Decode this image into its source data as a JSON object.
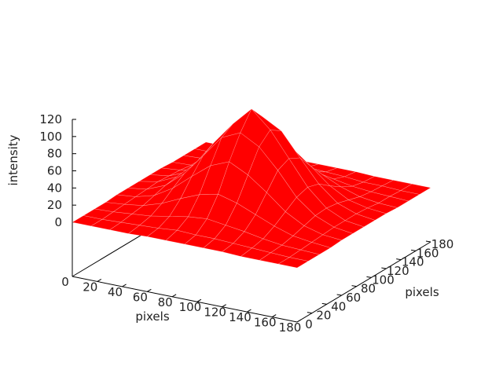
{
  "chart_data": {
    "type": "surface",
    "xlabel": "pixels",
    "ylabel": "pixels",
    "zlabel": "intensity",
    "xlim": [
      0,
      180
    ],
    "ylim": [
      0,
      180
    ],
    "zlim": [
      0,
      120
    ],
    "xticks": [
      "0",
      "20",
      "40",
      "60",
      "80",
      "100",
      "120",
      "140",
      "160",
      "180"
    ],
    "yticks": [
      "0",
      "20",
      "40",
      "60",
      "80",
      "100",
      "120",
      "140",
      "160",
      "180"
    ],
    "zticks": [
      "0",
      "20",
      "40",
      "60",
      "80",
      "100",
      "120"
    ],
    "grid": false,
    "surface_color": "#ff0000",
    "x": [
      0,
      15,
      30,
      45,
      60,
      75,
      90,
      105,
      120,
      135,
      150,
      165,
      180
    ],
    "y": [
      0,
      15,
      30,
      45,
      60,
      75,
      90,
      105,
      120,
      135,
      150,
      165,
      180
    ],
    "z": [
      [
        0,
        0,
        0,
        0,
        1,
        1,
        1,
        1,
        1,
        0,
        0,
        0,
        0
      ],
      [
        0,
        0,
        1,
        2,
        3,
        5,
        4,
        4,
        3,
        2,
        1,
        0,
        0
      ],
      [
        0,
        1,
        3,
        5,
        9,
        13,
        15,
        12,
        9,
        5,
        2,
        1,
        0
      ],
      [
        0,
        2,
        5,
        12,
        22,
        31,
        36,
        30,
        21,
        12,
        5,
        2,
        0
      ],
      [
        1,
        3,
        9,
        22,
        40,
        57,
        66,
        55,
        39,
        21,
        9,
        3,
        1
      ],
      [
        1,
        4,
        13,
        31,
        56,
        82,
        92,
        80,
        57,
        30,
        13,
        4,
        1
      ],
      [
        1,
        5,
        15,
        35,
        64,
        90,
        112,
        92,
        63,
        34,
        14,
        4,
        1
      ],
      [
        1,
        4,
        13,
        30,
        55,
        80,
        95,
        83,
        56,
        30,
        12,
        4,
        1
      ],
      [
        1,
        3,
        8,
        21,
        38,
        56,
        63,
        55,
        38,
        20,
        8,
        3,
        1
      ],
      [
        0,
        1,
        4,
        11,
        21,
        30,
        34,
        30,
        21,
        11,
        4,
        1,
        0
      ],
      [
        0,
        1,
        2,
        5,
        8,
        12,
        14,
        12,
        8,
        4,
        2,
        1,
        0
      ],
      [
        0,
        0,
        1,
        2,
        3,
        4,
        5,
        4,
        3,
        1,
        1,
        0,
        0
      ],
      [
        0,
        0,
        0,
        0,
        1,
        1,
        1,
        1,
        1,
        0,
        0,
        0,
        0
      ]
    ]
  }
}
